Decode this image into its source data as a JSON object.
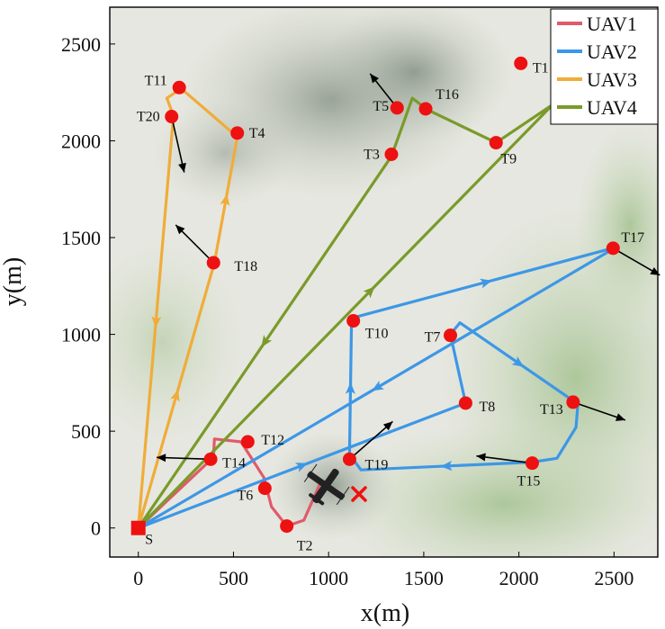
{
  "chart_data": {
    "type": "line",
    "xlabel": "x(m)",
    "ylabel": "y(m)",
    "xlim": [
      -150,
      2730
    ],
    "ylim": [
      -150,
      2690
    ],
    "x_ticks": [
      "0",
      "500",
      "1000",
      "1500",
      "2000",
      "2500"
    ],
    "x_tick_values": [
      0,
      500,
      1000,
      1500,
      2000,
      2500
    ],
    "y_ticks": [
      "0",
      "500",
      "1000",
      "1500",
      "2000",
      "2500"
    ],
    "y_tick_values": [
      0,
      500,
      1000,
      1500,
      2000,
      2500
    ],
    "legend_position": "top-right",
    "colors": {
      "frame": "#000000",
      "target": "#ee1111",
      "start": "#ee1111"
    },
    "series": [
      {
        "name": "UAV1",
        "color": "#e05a6a",
        "path": [
          [
            0,
            0
          ],
          [
            395,
            365
          ],
          [
            400,
            460
          ],
          [
            540,
            445
          ],
          [
            660,
            260
          ],
          [
            700,
            110
          ],
          [
            780,
            10
          ],
          [
            870,
            40
          ],
          [
            960,
            240
          ]
        ]
      },
      {
        "name": "UAV2",
        "color": "#3d97e6",
        "path": [
          [
            0,
            0
          ],
          [
            1720,
            645
          ],
          [
            1640,
            1000
          ],
          [
            1690,
            1060
          ],
          [
            2310,
            640
          ],
          [
            2300,
            520
          ],
          [
            2200,
            360
          ],
          [
            2070,
            340
          ],
          [
            1170,
            300
          ],
          [
            1110,
            380
          ],
          [
            1120,
            1060
          ],
          [
            1145,
            1090
          ],
          [
            2510,
            1450
          ],
          [
            0,
            0
          ]
        ]
      },
      {
        "name": "UAV3",
        "color": "#f0ac3a",
        "path": [
          [
            0,
            0
          ],
          [
            400,
            1370
          ],
          [
            520,
            2020
          ],
          [
            225,
            2270
          ],
          [
            150,
            2220
          ],
          [
            185,
            2130
          ],
          [
            0,
            0
          ]
        ]
      },
      {
        "name": "UAV4",
        "color": "#7a9a2a",
        "path": [
          [
            0,
            0
          ],
          [
            2440,
            2450
          ],
          [
            2560,
            2440
          ],
          [
            1880,
            1990
          ],
          [
            1520,
            2160
          ],
          [
            1440,
            2220
          ],
          [
            1330,
            1920
          ],
          [
            0,
            0
          ]
        ]
      }
    ],
    "targets": [
      {
        "label": "T1",
        "x": 2010,
        "y": 2400
      },
      {
        "label": "T2",
        "x": 780,
        "y": 10
      },
      {
        "label": "T3",
        "x": 1330,
        "y": 1930
      },
      {
        "label": "T4",
        "x": 520,
        "y": 2040
      },
      {
        "label": "T5",
        "x": 1360,
        "y": 2170
      },
      {
        "label": "T6",
        "x": 665,
        "y": 205
      },
      {
        "label": "T7",
        "x": 1640,
        "y": 995
      },
      {
        "label": "T8",
        "x": 1720,
        "y": 645
      },
      {
        "label": "T9",
        "x": 1880,
        "y": 1990
      },
      {
        "label": "T10",
        "x": 1130,
        "y": 1070
      },
      {
        "label": "T11",
        "x": 215,
        "y": 2275
      },
      {
        "label": "T12",
        "x": 575,
        "y": 445
      },
      {
        "label": "T13",
        "x": 2285,
        "y": 650
      },
      {
        "label": "T14",
        "x": 380,
        "y": 355
      },
      {
        "label": "T15",
        "x": 2070,
        "y": 335
      },
      {
        "label": "T16",
        "x": 1510,
        "y": 2165
      },
      {
        "label": "T17",
        "x": 2495,
        "y": 1445
      },
      {
        "label": "T18",
        "x": 395,
        "y": 1370
      },
      {
        "label": "T19",
        "x": 1110,
        "y": 355
      },
      {
        "label": "T20",
        "x": 175,
        "y": 2125
      }
    ],
    "start": {
      "label": "S",
      "x": 0,
      "y": 0
    }
  }
}
